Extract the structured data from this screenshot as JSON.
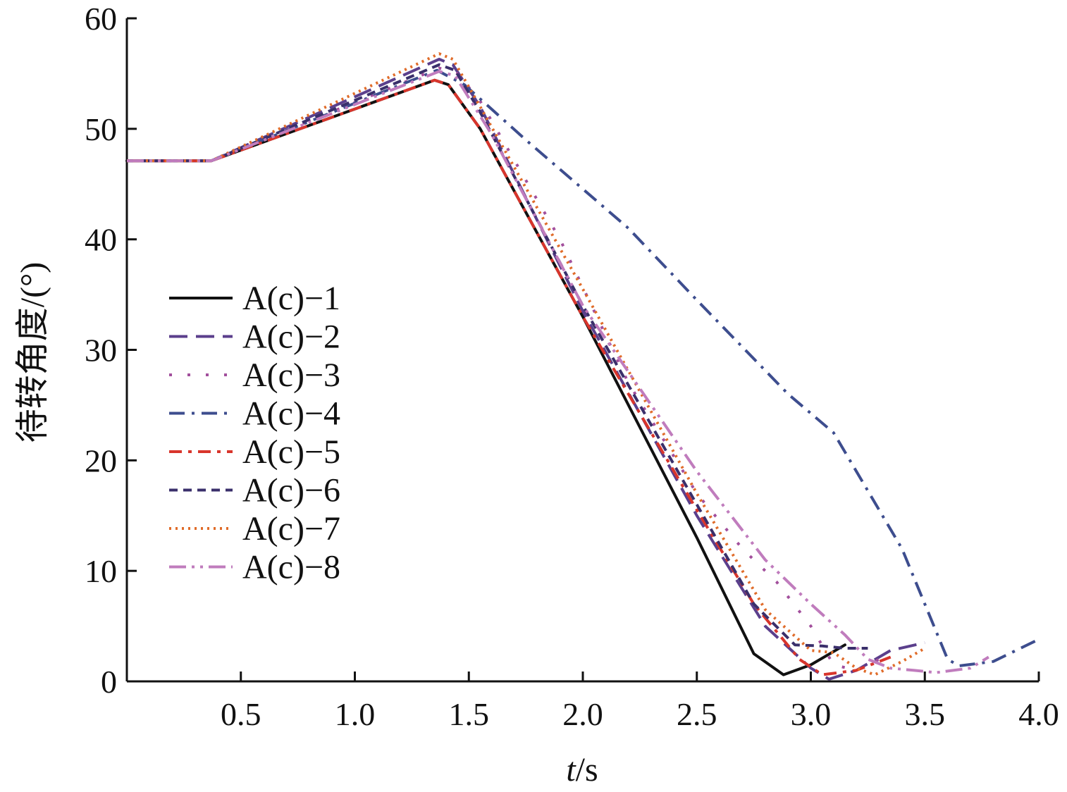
{
  "chart_data": {
    "type": "line",
    "title": "",
    "xlabel": "t/s",
    "xlabel_parts": {
      "var": "t",
      "unit": "/s"
    },
    "ylabel": "待转角度/(°)",
    "xlim": [
      0,
      4.0
    ],
    "ylim": [
      0,
      60
    ],
    "x_ticks": [
      0.5,
      1.0,
      1.5,
      2.0,
      2.5,
      3.0,
      3.5,
      4.0
    ],
    "x_tick_labels": [
      "0.5",
      "1.0",
      "1.5",
      "2.0",
      "2.5",
      "3.0",
      "3.5",
      "4.0"
    ],
    "y_ticks": [
      0,
      10,
      20,
      30,
      40,
      50,
      60
    ],
    "y_tick_labels": [
      "0",
      "10",
      "20",
      "30",
      "40",
      "50",
      "60"
    ],
    "grid": false,
    "legend_position": "left-middle",
    "series": [
      {
        "name": "A(c)−1",
        "color": "#111111",
        "dash": "solid",
        "points": [
          [
            0,
            47.1
          ],
          [
            0.37,
            47.1
          ],
          [
            1.35,
            54.4
          ],
          [
            1.41,
            54.0
          ],
          [
            1.55,
            50.0
          ],
          [
            2.0,
            33.0
          ],
          [
            2.5,
            13.0
          ],
          [
            2.75,
            2.5
          ],
          [
            2.88,
            0.6
          ],
          [
            3.0,
            1.5
          ],
          [
            3.15,
            3.3
          ]
        ]
      },
      {
        "name": "A(c)−2",
        "color": "#5b3f8c",
        "dash": "long-dash",
        "points": [
          [
            0,
            47.1
          ],
          [
            0.37,
            47.1
          ],
          [
            1.37,
            56.3
          ],
          [
            1.43,
            55.8
          ],
          [
            1.55,
            52.0
          ],
          [
            2.0,
            33.5
          ],
          [
            2.5,
            15.0
          ],
          [
            2.8,
            5.0
          ],
          [
            3.0,
            1.2
          ],
          [
            3.08,
            0.2
          ],
          [
            3.2,
            1.0
          ],
          [
            3.35,
            2.8
          ],
          [
            3.5,
            3.5
          ]
        ]
      },
      {
        "name": "A(c)−3",
        "color": "#a24f9c",
        "dash": "dotted-sparse",
        "points": [
          [
            0,
            47.1
          ],
          [
            0.37,
            47.1
          ],
          [
            1.37,
            55.5
          ],
          [
            1.45,
            55.0
          ],
          [
            1.55,
            52.5
          ],
          [
            1.9,
            40.0
          ],
          [
            2.2,
            27.0
          ],
          [
            2.5,
            17.0
          ],
          [
            2.7,
            12.0
          ],
          [
            2.85,
            9.0
          ],
          [
            3.0,
            5.0
          ],
          [
            3.1,
            1.5
          ],
          [
            3.2,
            1.0
          ],
          [
            3.3,
            2.0
          ]
        ]
      },
      {
        "name": "A(c)−4",
        "color": "#3d4d8e",
        "dash": "dash-dot",
        "points": [
          [
            0,
            47.1
          ],
          [
            0.37,
            47.1
          ],
          [
            1.36,
            55.3
          ],
          [
            1.48,
            54.0
          ],
          [
            1.75,
            49.0
          ],
          [
            2.2,
            41.0
          ],
          [
            2.5,
            34.5
          ],
          [
            2.9,
            26.0
          ],
          [
            3.1,
            22.5
          ],
          [
            3.4,
            12.0
          ],
          [
            3.6,
            2.0
          ],
          [
            3.65,
            1.4
          ],
          [
            3.8,
            1.8
          ],
          [
            3.9,
            2.8
          ],
          [
            4.0,
            3.8
          ]
        ]
      },
      {
        "name": "A(c)−5",
        "color": "#d8352c",
        "dash": "dash-dot-red",
        "points": [
          [
            0,
            47.1
          ],
          [
            0.37,
            47.1
          ],
          [
            1.35,
            54.4
          ],
          [
            1.41,
            54.0
          ],
          [
            1.55,
            50.0
          ],
          [
            2.0,
            33.0
          ],
          [
            2.5,
            15.5
          ],
          [
            2.75,
            7.0
          ],
          [
            2.95,
            2.0
          ],
          [
            3.05,
            0.6
          ],
          [
            3.2,
            1.0
          ],
          [
            3.35,
            2.2
          ]
        ]
      },
      {
        "name": "A(c)−6",
        "color": "#3a2f6b",
        "dash": "short-dash",
        "points": [
          [
            0,
            47.1
          ],
          [
            0.37,
            47.1
          ],
          [
            1.37,
            55.8
          ],
          [
            1.44,
            55.3
          ],
          [
            1.55,
            51.5
          ],
          [
            2.0,
            34.0
          ],
          [
            2.5,
            16.0
          ],
          [
            2.75,
            7.0
          ],
          [
            2.93,
            3.3
          ],
          [
            3.05,
            3.2
          ],
          [
            3.15,
            3.0
          ],
          [
            3.25,
            3.0
          ]
        ]
      },
      {
        "name": "A(c)−7",
        "color": "#e06c2a",
        "dash": "dotted",
        "points": [
          [
            0,
            47.1
          ],
          [
            0.37,
            47.1
          ],
          [
            1.37,
            56.8
          ],
          [
            1.43,
            56.3
          ],
          [
            1.55,
            52.0
          ],
          [
            2.0,
            35.5
          ],
          [
            2.5,
            17.0
          ],
          [
            2.8,
            6.5
          ],
          [
            3.0,
            2.8
          ],
          [
            3.1,
            2.6
          ],
          [
            3.2,
            1.2
          ],
          [
            3.28,
            0.6
          ],
          [
            3.4,
            1.8
          ],
          [
            3.5,
            3.0
          ]
        ]
      },
      {
        "name": "A(c)−8",
        "color": "#c07cbd",
        "dash": "dash-dot-dot",
        "points": [
          [
            0,
            47.1
          ],
          [
            0.37,
            47.1
          ],
          [
            1.37,
            55.2
          ],
          [
            1.44,
            54.8
          ],
          [
            1.6,
            49.5
          ],
          [
            2.0,
            34.0
          ],
          [
            2.5,
            19.0
          ],
          [
            2.8,
            11.0
          ],
          [
            3.0,
            7.0
          ],
          [
            3.15,
            4.2
          ],
          [
            3.25,
            2.0
          ],
          [
            3.35,
            1.2
          ],
          [
            3.45,
            1.0
          ],
          [
            3.55,
            0.8
          ],
          [
            3.7,
            1.2
          ],
          [
            3.78,
            2.2
          ]
        ]
      }
    ]
  }
}
